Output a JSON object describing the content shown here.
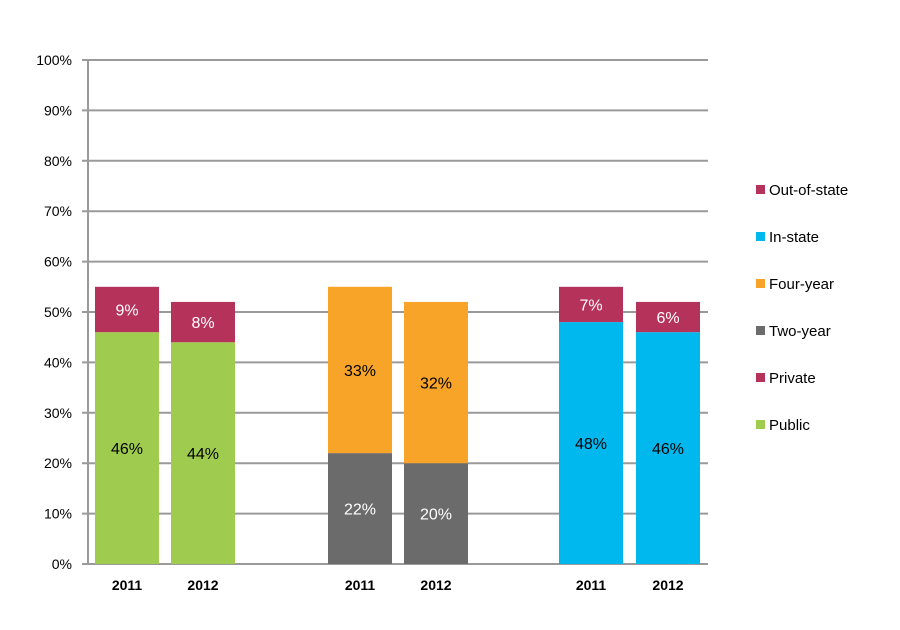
{
  "chart_data": {
    "type": "bar",
    "stacked": true,
    "ylim": [
      0,
      100
    ],
    "y_ticks": [
      "0%",
      "10%",
      "20%",
      "30%",
      "40%",
      "50%",
      "60%",
      "70%",
      "80%",
      "90%",
      "100%"
    ],
    "grid": true,
    "legend_position": "right",
    "groups": [
      {
        "categories": [
          "2011",
          "2012"
        ],
        "series": [
          {
            "name": "Public",
            "color": "#9fcc4f",
            "label_color": "#000000",
            "values": [
              46,
              44
            ]
          },
          {
            "name": "Private",
            "color": "#b5335a",
            "label_color": "#ffffff",
            "values": [
              9,
              8
            ]
          }
        ]
      },
      {
        "categories": [
          "2011",
          "2012"
        ],
        "series": [
          {
            "name": "Two-year",
            "color": "#6b6b6b",
            "label_color": "#ffffff",
            "values": [
              22,
              20
            ]
          },
          {
            "name": "Four-year",
            "color": "#f8a428",
            "label_color": "#000000",
            "values": [
              33,
              32
            ]
          }
        ]
      },
      {
        "categories": [
          "2011",
          "2012"
        ],
        "series": [
          {
            "name": "In-state",
            "color": "#00b8ee",
            "label_color": "#000000",
            "values": [
              48,
              46
            ]
          },
          {
            "name": "Out-of-state",
            "color": "#b5335a",
            "label_color": "#ffffff",
            "values": [
              7,
              6
            ]
          }
        ]
      }
    ],
    "legend": [
      {
        "name": "Out-of-state",
        "color": "#b5335a"
      },
      {
        "name": "In-state",
        "color": "#00b8ee"
      },
      {
        "name": "Four-year",
        "color": "#f8a428"
      },
      {
        "name": "Two-year",
        "color": "#6b6b6b"
      },
      {
        "name": "Private",
        "color": "#b5335a"
      },
      {
        "name": "Public",
        "color": "#9fcc4f"
      }
    ]
  }
}
